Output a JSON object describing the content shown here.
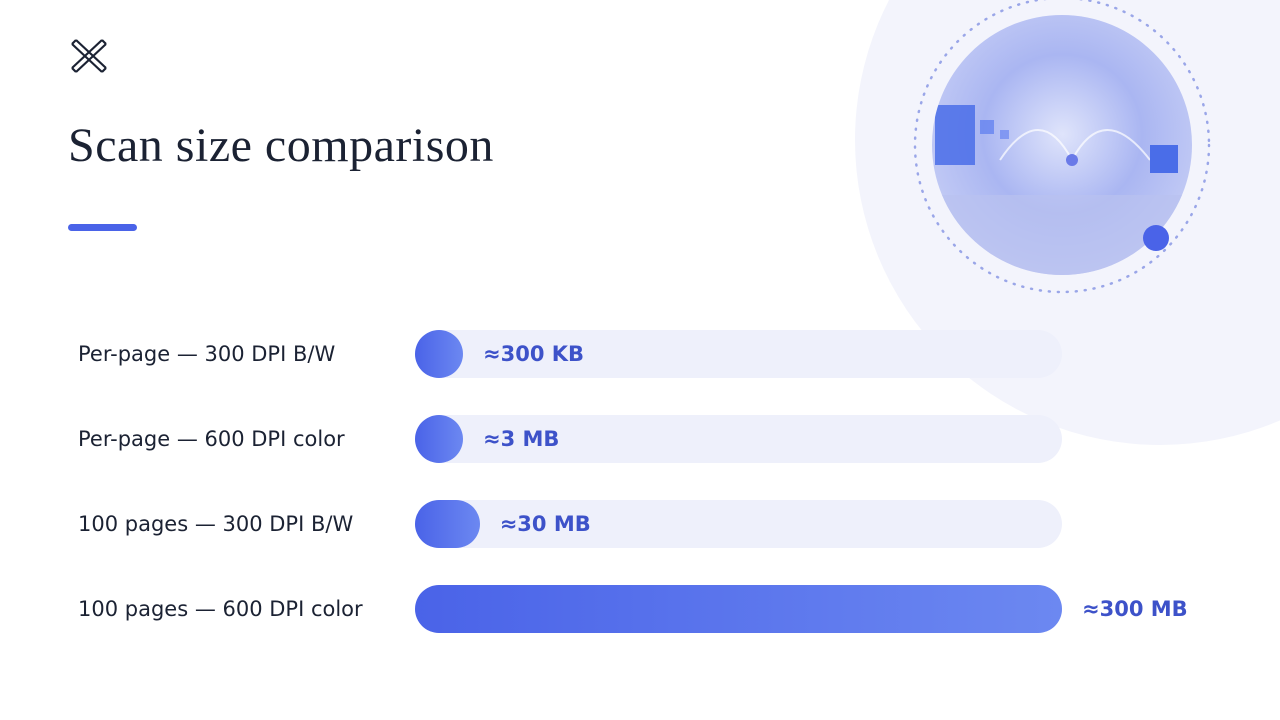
{
  "chart_data": {
    "type": "bar",
    "title": "Scan size comparison",
    "categories": [
      "Per-page — 300 DPI B/W",
      "Per-page — 600 DPI color",
      "100 pages — 300 DPI B/W",
      "100 pages — 600 DPI color"
    ],
    "values": [
      0.3,
      3,
      30,
      300
    ],
    "value_labels": [
      "≈300 KB",
      "≈3 MB",
      "≈30 MB",
      "≈300 MB"
    ],
    "xlim": [
      0,
      300
    ],
    "color": "#4a63e8"
  }
}
